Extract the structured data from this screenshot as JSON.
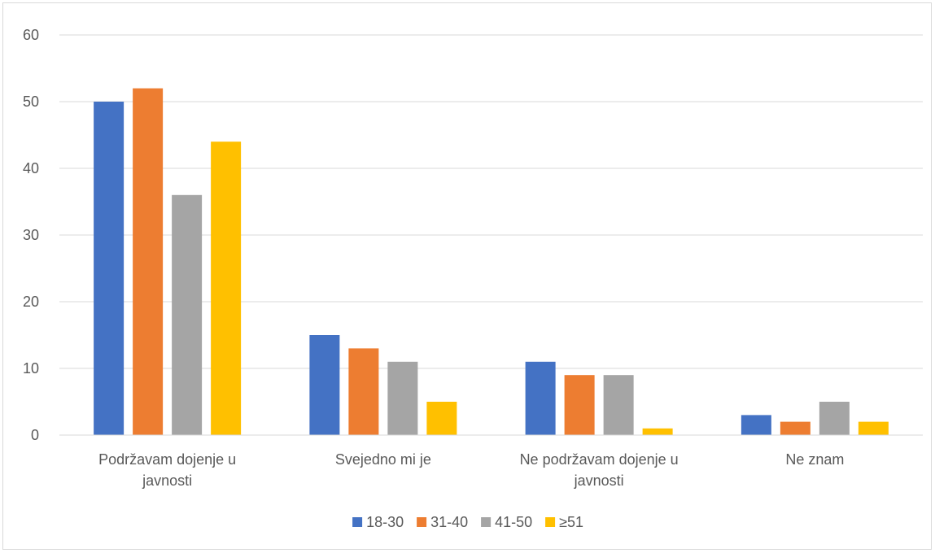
{
  "chart_data": {
    "type": "bar",
    "title": "",
    "xlabel": "",
    "ylabel": "",
    "ylim": [
      0,
      60
    ],
    "yticks": [
      0,
      10,
      20,
      30,
      40,
      50,
      60
    ],
    "grid": true,
    "legend_position": "bottom",
    "categories": [
      [
        "Podržavam dojenje u",
        "javnosti"
      ],
      [
        "Svejedno mi je"
      ],
      [
        "Ne podržavam dojenje u",
        "javnosti"
      ],
      [
        "Ne znam"
      ]
    ],
    "series": [
      {
        "name": "18-30",
        "color": "#4472C4",
        "values": [
          50,
          15,
          11,
          3
        ]
      },
      {
        "name": "31-40",
        "color": "#ED7D31",
        "values": [
          52,
          13,
          9,
          2
        ]
      },
      {
        "name": "41-50",
        "color": "#A5A5A5",
        "values": [
          36,
          11,
          9,
          5
        ]
      },
      {
        "name": "≥51",
        "color": "#FFC000",
        "values": [
          44,
          5,
          1,
          2
        ]
      }
    ]
  }
}
